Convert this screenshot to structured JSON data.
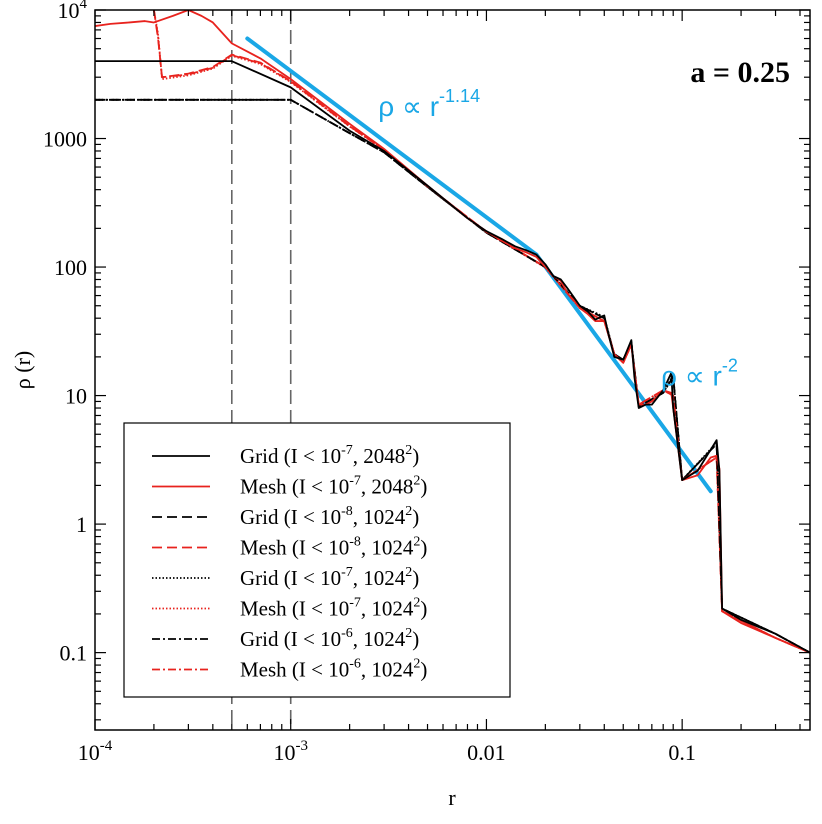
{
  "chart_data": {
    "type": "line",
    "title": "a = 0.25",
    "xlabel": "r",
    "ylabel": "ρ (r)",
    "xscale": "log",
    "yscale": "log",
    "xlim": [
      0.0001,
      0.45
    ],
    "ylim": [
      0.025,
      10000
    ],
    "grid": false,
    "legend_position": "bottom-left",
    "x_ticks": [
      {
        "value": 0.0001,
        "base": "10",
        "exp": "-4"
      },
      {
        "value": 0.001,
        "base": "10",
        "exp": "-3"
      },
      {
        "value": 0.01,
        "label": "0.01"
      },
      {
        "value": 0.1,
        "label": "0.1"
      }
    ],
    "y_ticks": [
      {
        "value": 0.1,
        "label": "0.1"
      },
      {
        "value": 1,
        "label": "1"
      },
      {
        "value": 10,
        "label": "10"
      },
      {
        "value": 100,
        "label": "100"
      },
      {
        "value": 1000,
        "label": "1000"
      },
      {
        "value": 10000,
        "base": "10",
        "exp": "4"
      }
    ],
    "vertical_lines": [
      0.0005,
      0.001
    ],
    "annotations": [
      {
        "text": "ρ ∝ r",
        "exp": "-1.14",
        "x": 0.0028,
        "y": 1500
      },
      {
        "text": "ρ ∝ r",
        "exp": "-2",
        "x": 0.078,
        "y": 12
      }
    ],
    "fits": [
      {
        "label": "ρ ∝ r-1.14",
        "color": "#1aa7e6",
        "x": [
          0.0006,
          0.018
        ],
        "y": [
          6000,
          125
        ]
      },
      {
        "label": "ρ ∝ r-2",
        "color": "#1aa7e6",
        "x": [
          0.018,
          0.14
        ],
        "y": [
          125,
          1.8
        ]
      }
    ],
    "series": [
      {
        "name": "Grid (I < 10-7, 20482)",
        "legend_main": "Grid (I < 10",
        "legend_exp1": "-7",
        "legend_mid": ", 2048",
        "legend_exp2": "2",
        "color": "#000000",
        "dash": "solid",
        "x": [
          0.0001,
          0.0005,
          0.001,
          0.002,
          0.003,
          0.005,
          0.008,
          0.01,
          0.012,
          0.014,
          0.016,
          0.018,
          0.02,
          0.022,
          0.024,
          0.026,
          0.028,
          0.03,
          0.033,
          0.036,
          0.04,
          0.042,
          0.045,
          0.05,
          0.055,
          0.057,
          0.06,
          0.065,
          0.07,
          0.08,
          0.088,
          0.09,
          0.1,
          0.12,
          0.14,
          0.15,
          0.155,
          0.16,
          0.2,
          0.3,
          0.45
        ],
        "y": [
          4000,
          4000,
          2500,
          1150,
          800,
          430,
          240,
          190,
          165,
          145,
          135,
          125,
          105,
          85,
          80,
          68,
          58,
          50,
          45,
          39,
          42,
          30,
          20,
          19,
          27,
          14,
          8,
          8.5,
          8.5,
          11,
          15,
          8,
          2.2,
          2.6,
          3.8,
          4.5,
          2.6,
          0.22,
          0.18,
          0.14,
          0.1
        ]
      },
      {
        "name": "Mesh (I < 10-7, 20482)",
        "legend_main": "Mesh (I < 10",
        "legend_exp1": "-7",
        "legend_mid": ", 2048",
        "legend_exp2": "2",
        "color": "#e8231e",
        "dash": "solid",
        "x": [
          0.0001,
          0.00012,
          0.00015,
          0.00018,
          0.0002,
          0.00025,
          0.0003,
          0.00035,
          0.0004,
          0.0005,
          0.0007,
          0.001,
          0.002,
          0.003,
          0.005,
          0.008,
          0.01,
          0.012,
          0.014,
          0.016,
          0.018,
          0.02,
          0.022,
          0.024,
          0.026,
          0.028,
          0.03,
          0.033,
          0.036,
          0.04,
          0.042,
          0.045,
          0.05,
          0.055,
          0.057,
          0.06,
          0.065,
          0.07,
          0.08,
          0.088,
          0.09,
          0.1,
          0.12,
          0.14,
          0.15,
          0.155,
          0.16,
          0.2,
          0.3,
          0.45
        ],
        "y": [
          7500,
          7800,
          8000,
          8200,
          8000,
          9000,
          10000,
          9000,
          8000,
          5500,
          4200,
          2900,
          1300,
          830,
          430,
          240,
          190,
          160,
          140,
          130,
          120,
          100,
          85,
          78,
          62,
          55,
          48,
          43,
          38,
          38,
          30,
          21,
          18,
          25,
          15,
          8.5,
          8.5,
          9,
          11,
          10.5,
          8,
          2.2,
          2.4,
          3.3,
          3.4,
          2.7,
          0.21,
          0.17,
          0.13,
          0.1
        ]
      },
      {
        "name": "Grid (I < 10-8, 10242)",
        "legend_main": "Grid (I < 10",
        "legend_exp1": "-8",
        "legend_mid": ", 1024",
        "legend_exp2": "2",
        "color": "#000000",
        "dash": "long",
        "x": [
          0.0001,
          0.0005,
          0.001,
          0.002,
          0.003,
          0.005,
          0.01,
          0.02,
          0.03,
          0.04,
          0.045,
          0.05,
          0.055,
          0.06,
          0.08,
          0.09,
          0.1,
          0.15,
          0.16,
          0.3,
          0.45
        ],
        "y": [
          2000,
          2000,
          2000,
          1100,
          780,
          420,
          185,
          100,
          50,
          40,
          21,
          19,
          26,
          8.2,
          10.5,
          14,
          2.2,
          4.2,
          0.22,
          0.14,
          0.1
        ]
      },
      {
        "name": "Mesh (I < 10-8, 10242)",
        "legend_main": "Mesh (I < 10",
        "legend_exp1": "-8",
        "legend_mid": ", 1024",
        "legend_exp2": "2",
        "color": "#e8231e",
        "dash": "long",
        "x": [
          0.0002,
          0.00021,
          0.00022,
          0.0003,
          0.0004,
          0.0005,
          0.0007,
          0.001,
          0.002,
          0.003,
          0.005,
          0.01,
          0.02,
          0.03,
          0.04,
          0.045,
          0.05,
          0.055,
          0.06,
          0.08,
          0.09,
          0.1,
          0.15,
          0.16,
          0.3,
          0.45
        ],
        "y": [
          10000,
          6000,
          3000,
          3200,
          3600,
          4500,
          3900,
          2800,
          1250,
          820,
          425,
          188,
          100,
          48,
          38,
          21,
          18,
          25,
          8.5,
          11,
          10,
          2.2,
          3.3,
          0.21,
          0.13,
          0.1
        ]
      },
      {
        "name": "Grid (I < 10-7, 10242)",
        "legend_main": "Grid (I < 10",
        "legend_exp1": "-7",
        "legend_mid": ", 1024",
        "legend_exp2": "2",
        "color": "#000000",
        "dash": "dotted",
        "x": [
          0.0001,
          0.0005,
          0.001,
          0.002,
          0.003,
          0.005,
          0.01,
          0.02,
          0.03,
          0.04,
          0.045,
          0.05,
          0.055,
          0.06,
          0.08,
          0.09,
          0.1,
          0.15,
          0.16,
          0.3,
          0.45
        ],
        "y": [
          2000,
          2000,
          2000,
          1100,
          780,
          420,
          185,
          100,
          50,
          41,
          21,
          19,
          26,
          8.2,
          10.5,
          14.5,
          2.2,
          4.3,
          0.22,
          0.14,
          0.1
        ]
      },
      {
        "name": "Mesh (I < 10-7, 10242)",
        "legend_main": "Mesh (I < 10",
        "legend_exp1": "-7",
        "legend_mid": ", 1024",
        "legend_exp2": "2",
        "color": "#e8231e",
        "dash": "dotted",
        "x": [
          0.0002,
          0.00021,
          0.00022,
          0.0003,
          0.0004,
          0.0005,
          0.0007,
          0.001,
          0.002,
          0.003,
          0.005,
          0.01,
          0.02,
          0.03,
          0.04,
          0.045,
          0.05,
          0.055,
          0.06,
          0.08,
          0.09,
          0.1,
          0.15,
          0.16,
          0.3,
          0.45
        ],
        "y": [
          10000,
          6500,
          2900,
          3100,
          3500,
          4400,
          3800,
          2750,
          1240,
          815,
          425,
          187,
          99,
          48,
          38,
          21,
          18,
          25,
          8.5,
          11,
          10,
          2.2,
          3.3,
          0.21,
          0.13,
          0.1
        ]
      },
      {
        "name": "Grid (I < 10-6, 10242)",
        "legend_main": "Grid (I < 10",
        "legend_exp1": "-6",
        "legend_mid": ", 1024",
        "legend_exp2": "2",
        "color": "#000000",
        "dash": "dashdot",
        "x": [
          0.0001,
          0.0005,
          0.001,
          0.002,
          0.003,
          0.005,
          0.01,
          0.02,
          0.03,
          0.04,
          0.045,
          0.05,
          0.055,
          0.06,
          0.08,
          0.09,
          0.1,
          0.15,
          0.16,
          0.3,
          0.45
        ],
        "y": [
          2000,
          2000,
          2000,
          1100,
          780,
          420,
          185,
          100,
          50,
          40,
          21,
          19,
          26,
          8.2,
          10.5,
          14,
          2.2,
          4.2,
          0.22,
          0.14,
          0.1
        ]
      },
      {
        "name": "Mesh (I < 10-6, 10242)",
        "legend_main": "Mesh (I < 10",
        "legend_exp1": "-6",
        "legend_mid": ", 1024",
        "legend_exp2": "2",
        "color": "#e8231e",
        "dash": "dashdot",
        "x": [
          0.0002,
          0.00021,
          0.00022,
          0.0003,
          0.0004,
          0.0005,
          0.0007,
          0.001,
          0.002,
          0.003,
          0.005,
          0.01,
          0.02,
          0.03,
          0.04,
          0.045,
          0.05,
          0.055,
          0.06,
          0.08,
          0.09,
          0.1,
          0.15,
          0.16,
          0.3,
          0.45
        ],
        "y": [
          10000,
          6200,
          3000,
          3150,
          3550,
          4450,
          3850,
          2780,
          1245,
          818,
          425,
          188,
          100,
          48,
          38,
          21,
          18,
          25,
          8.5,
          11,
          10,
          2.2,
          3.3,
          0.21,
          0.13,
          0.1
        ]
      }
    ]
  }
}
